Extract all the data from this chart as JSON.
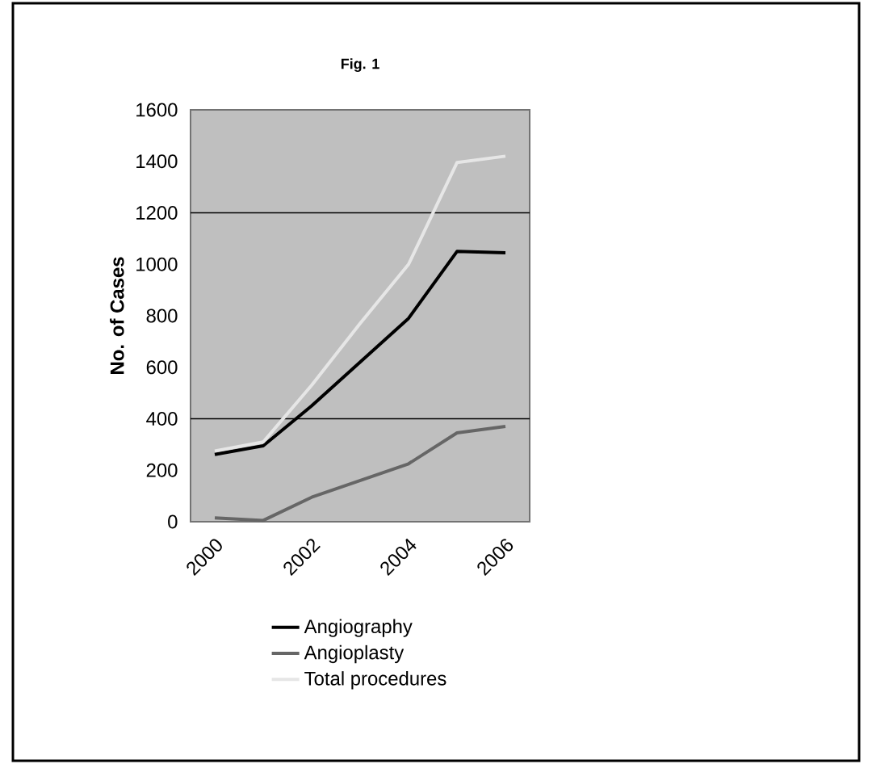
{
  "chart_data": {
    "type": "line",
    "title": "Fig. 1",
    "ylabel": "No. of Cases",
    "categories": [
      "2000",
      null,
      "2002",
      null,
      "2004",
      null,
      "2006"
    ],
    "series": [
      {
        "name": "Angiography",
        "color": "#000000",
        "values": [
          261,
          295,
          450,
          620,
          790,
          1050,
          1045
        ]
      },
      {
        "name": "Angioplasty",
        "color": "#666666",
        "values": [
          15,
          5,
          95,
          160,
          225,
          345,
          370
        ]
      },
      {
        "name": "Total procedures",
        "color": "#e6e6e6",
        "values": [
          275,
          310,
          530,
          770,
          1000,
          1395,
          1420
        ]
      }
    ],
    "ylim": [
      0,
      1600
    ],
    "yticks": [
      0,
      200,
      400,
      600,
      800,
      1000,
      1200,
      1400,
      1600
    ],
    "ref_lines": [
      {
        "axis": "y",
        "value": 400
      },
      {
        "axis": "y",
        "value": 1200
      }
    ],
    "legend": "bottom",
    "marker": "none",
    "line_style": "solid"
  }
}
